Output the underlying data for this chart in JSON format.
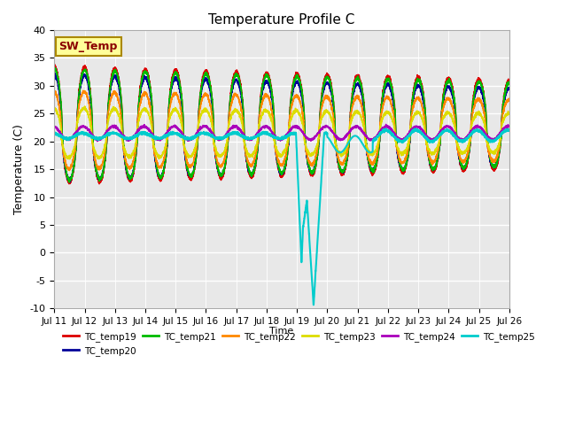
{
  "title": "Temperature Profile C",
  "xlabel": "Time",
  "ylabel": "Temperature (C)",
  "ylim": [
    -10,
    40
  ],
  "bg_color": "#e8e8e8",
  "line_colors": [
    "#dd0000",
    "#000099",
    "#00bb00",
    "#ff8800",
    "#dddd00",
    "#aa00bb",
    "#00cccc"
  ],
  "legend_entries": [
    "TC_temp19",
    "TC_temp20",
    "TC_temp21",
    "TC_temp22",
    "TC_temp23",
    "TC_temp24",
    "TC_temp25"
  ],
  "x_tick_labels": [
    "Jul 11",
    "Jul 12",
    "Jul 13",
    "Jul 14",
    "Jul 15",
    "Jul 16",
    "Jul 17",
    "Jul 18",
    "Jul 19",
    "Jul 20",
    "Jul 21",
    "Jul 22",
    "Jul 23",
    "Jul 24",
    "Jul 25",
    "Jul 26"
  ],
  "sw_temp_label": "SW_Temp",
  "n_days": 15,
  "spd": 288
}
